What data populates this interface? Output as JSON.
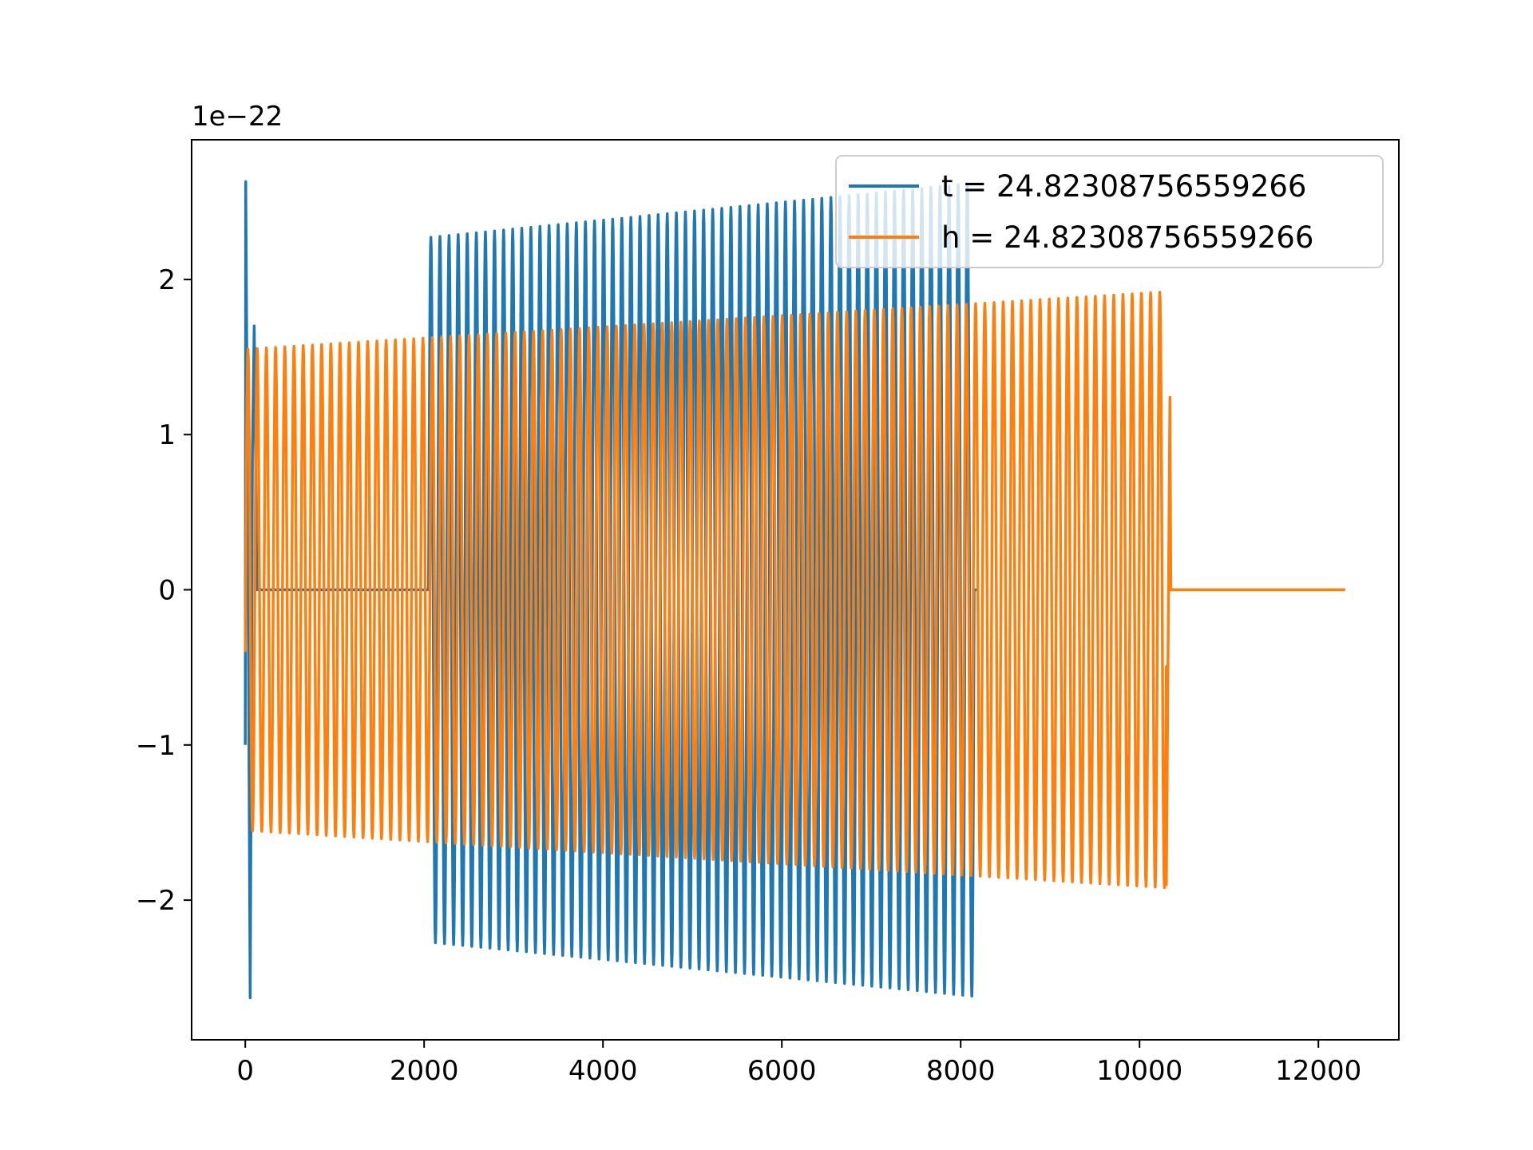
{
  "chart_data": {
    "type": "line",
    "title": "",
    "xlabel": "",
    "ylabel": "",
    "y_offset_label": "1e−22",
    "xlim": [
      -600,
      12900
    ],
    "ylim": [
      -2.9,
      2.9
    ],
    "x_ticks": [
      0,
      2000,
      4000,
      6000,
      8000,
      10000,
      12000
    ],
    "x_tick_labels": [
      "0",
      "2000",
      "4000",
      "6000",
      "8000",
      "10000",
      "12000"
    ],
    "y_ticks": [
      -2,
      -1,
      0,
      1,
      2
    ],
    "y_tick_labels": [
      "−2",
      "−1",
      "0",
      "1",
      "2"
    ],
    "grid": false,
    "legend_position": "top-right",
    "series": [
      {
        "name": "t = 24.82308756559266",
        "color": "#1f77b4",
        "segments": [
          {
            "x_start": 0,
            "x_end": 150,
            "shape": "transient",
            "points": [
              [
                0,
                -1.0
              ],
              [
                5,
                2.63
              ],
              [
                30,
                0.3
              ],
              [
                55,
                -2.63
              ],
              [
                80,
                0.9
              ],
              [
                100,
                1.7
              ],
              [
                130,
                0.0
              ],
              [
                150,
                0.0
              ]
            ]
          },
          {
            "x_start": 150,
            "x_end": 2050,
            "amplitude": 0.0
          },
          {
            "x_start": 2050,
            "x_end": 8150,
            "cycles": 60,
            "amplitude_start": 2.27,
            "amplitude_end": 2.62
          },
          {
            "x_start": 8150,
            "x_end": 8200,
            "amplitude": 0.0
          }
        ]
      },
      {
        "name": "h = 24.82308756559266",
        "color": "#ff7f0e",
        "segments": [
          {
            "x_start": 0,
            "x_end": 10300,
            "cycles": 100,
            "amplitude_start": 1.55,
            "amplitude_end": 1.92,
            "start_value": -0.4
          },
          {
            "x_start": 10300,
            "x_end": 10350,
            "shape": "ringdown",
            "points": [
              [
                10300,
                -1.9
              ],
              [
                10340,
                1.24
              ],
              [
                10350,
                0.0
              ]
            ]
          },
          {
            "x_start": 10350,
            "x_end": 12300,
            "amplitude": 0.0
          }
        ]
      }
    ]
  }
}
